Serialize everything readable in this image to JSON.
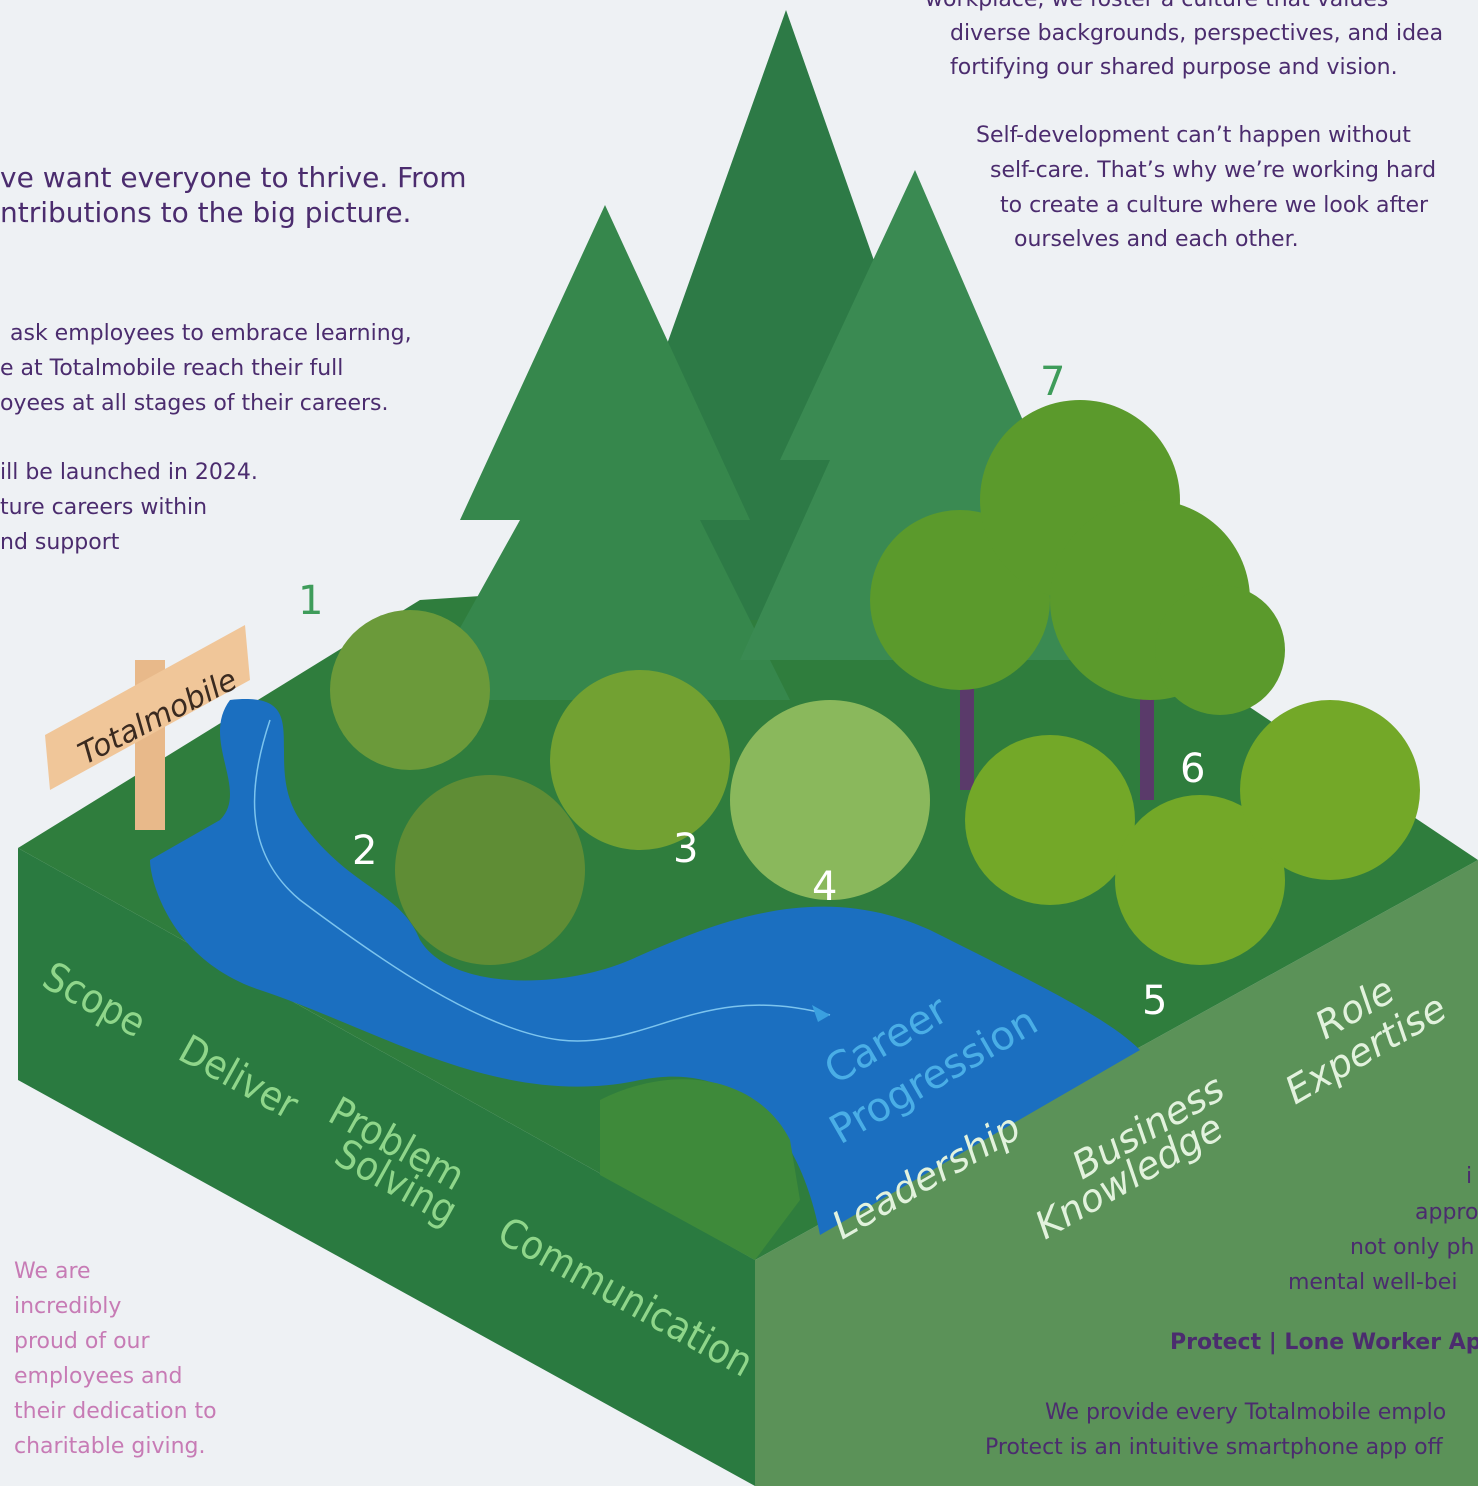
{
  "top_right": {
    "lines": [
      "workplace, we foster a culture that values",
      "diverse backgrounds, perspectives, and idea",
      "fortifying our shared purpose and vision."
    ]
  },
  "self_care": {
    "lines": [
      "Self-development can’t happen without",
      "self-care. That’s why we’re working hard",
      "to create a culture where we look after",
      "ourselves and each other."
    ]
  },
  "intro": {
    "lines": [
      "ve want everyone to thrive. From",
      "ntributions to the big picture."
    ]
  },
  "learning": {
    "lines": [
      "ask employees to embrace learning,",
      "e at Totalmobile reach their full",
      "oyees at all stages of their careers."
    ]
  },
  "launch": {
    "lines": [
      "ill be launched in 2024.",
      "ture careers within",
      "nd support"
    ]
  },
  "markers": [
    "1",
    "2",
    "3",
    "4",
    "5",
    "6",
    "7"
  ],
  "sign": "Totalmobile",
  "skills": {
    "scope": "Scope",
    "deliver": "Deliver",
    "problem_solving": [
      "Problem",
      "Solving"
    ],
    "communication": "Communication",
    "leadership": "Leadership",
    "business_knowledge": [
      "Business",
      "Knowledge"
    ],
    "role_expertise": [
      "Role",
      "Expertise"
    ]
  },
  "river_label": [
    "Career",
    "Progression"
  ],
  "charity": {
    "lines": [
      "We are",
      "incredibly",
      "proud of our",
      "employees and",
      "their dedication to",
      "charitable giving."
    ]
  },
  "wellbeing": {
    "lines": [
      "i",
      "appro",
      "not only ph",
      "mental well-bei"
    ]
  },
  "protect": {
    "heading": "Protect | Lone Worker App",
    "lines": [
      "We provide every Totalmobile emplo",
      "Protect is an intuitive smartphone app off"
    ]
  }
}
